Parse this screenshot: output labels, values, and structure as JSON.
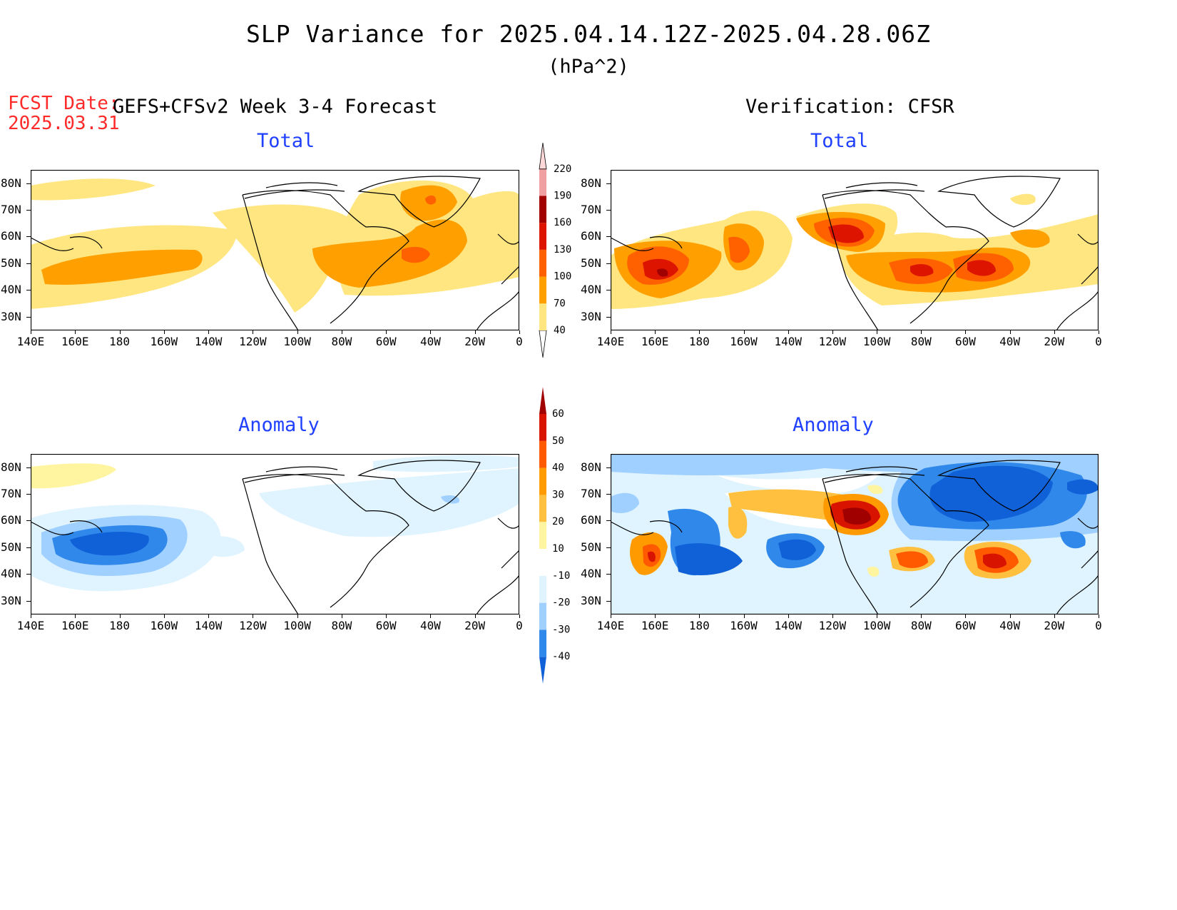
{
  "title": "SLP Variance for 2025.04.14.12Z-2025.04.28.06Z",
  "units": "(hPa^2)",
  "fcst_date": {
    "label": "FCST Date:",
    "value": "2025.03.31"
  },
  "left_header": "GEFS+CFSv2 Week 3-4 Forecast",
  "right_header": "Verification: CFSR",
  "panel_titles": {
    "tl": "Total",
    "tr": "Total",
    "bl": "Anomaly",
    "br": "Anomaly"
  },
  "lat_labels": [
    "80N",
    "70N",
    "60N",
    "50N",
    "40N",
    "30N"
  ],
  "lon_labels": [
    "140E",
    "160E",
    "180",
    "160W",
    "140W",
    "120W",
    "100W",
    "80W",
    "60W",
    "40W",
    "20W",
    "0"
  ],
  "total_colorbar": {
    "levels": [
      "40",
      "70",
      "100",
      "130",
      "160",
      "190",
      "220"
    ],
    "colors": [
      "#ffe680",
      "#ffa000",
      "#ff6000",
      "#dd1500",
      "#a00000",
      "#f0a0a0",
      "#ffd8d8"
    ]
  },
  "anomaly_colorbar": {
    "levels": [
      "-40",
      "-30",
      "-20",
      "-10",
      "10",
      "20",
      "30",
      "40",
      "50",
      "60"
    ],
    "colors": [
      "#1060d8",
      "#2f88ea",
      "#a0d0ff",
      "#e0f4ff",
      "#ffffff",
      "#fff5a0",
      "#ffc040",
      "#ff9a00",
      "#ff5a00",
      "#d81400",
      "#a00000"
    ]
  }
}
